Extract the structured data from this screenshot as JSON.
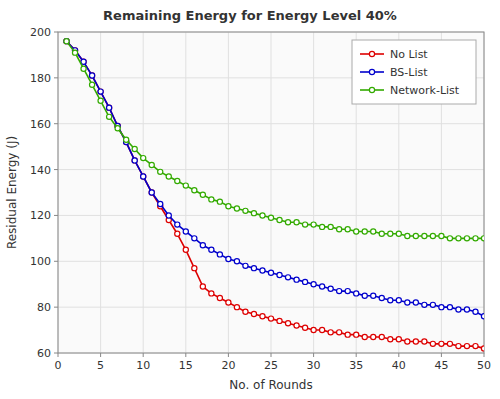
{
  "chart_data": {
    "type": "line",
    "title": "Remaining Energy for Energy Level 40%",
    "x_label": "No. of Rounds",
    "y_label": "Residual Energy (J)",
    "x": [
      1,
      2,
      3,
      4,
      5,
      6,
      7,
      8,
      9,
      10,
      11,
      12,
      13,
      14,
      15,
      16,
      17,
      18,
      19,
      20,
      21,
      22,
      23,
      24,
      25,
      26,
      27,
      28,
      29,
      30,
      31,
      32,
      33,
      34,
      35,
      36,
      37,
      38,
      39,
      40,
      41,
      42,
      43,
      44,
      45,
      46,
      47,
      48,
      49,
      50
    ],
    "series": [
      {
        "name": "No List",
        "color": "#dd0000",
        "values": [
          196,
          192,
          187,
          181,
          174,
          167,
          159,
          152,
          144,
          137,
          130,
          124,
          118,
          112,
          105,
          97,
          89,
          86,
          84,
          82,
          80,
          78,
          77,
          76,
          75,
          74,
          73,
          72,
          71,
          70,
          70,
          69,
          69,
          68,
          68,
          67,
          67,
          67,
          66,
          66,
          65,
          65,
          65,
          64,
          64,
          64,
          63,
          63,
          63,
          62
        ]
      },
      {
        "name": "BS-List",
        "color": "#0000cc",
        "values": [
          196,
          192,
          187,
          181,
          174,
          167,
          159,
          152,
          144,
          137,
          130,
          125,
          120,
          116,
          113,
          110,
          107,
          105,
          103,
          101,
          100,
          98,
          97,
          96,
          95,
          94,
          93,
          92,
          91,
          90,
          89,
          88,
          87,
          87,
          86,
          85,
          85,
          84,
          83,
          83,
          82,
          82,
          81,
          81,
          80,
          80,
          79,
          79,
          78,
          76
        ]
      },
      {
        "name": "Network-List",
        "color": "#33aa00",
        "values": [
          196,
          191,
          184,
          177,
          170,
          163,
          158,
          153,
          149,
          145,
          142,
          139,
          137,
          135,
          133,
          131,
          129,
          127,
          126,
          124,
          123,
          122,
          121,
          120,
          119,
          118,
          117,
          117,
          116,
          116,
          115,
          115,
          114,
          114,
          113,
          113,
          113,
          112,
          112,
          112,
          111,
          111,
          111,
          111,
          111,
          110,
          110,
          110,
          110,
          110
        ]
      }
    ],
    "marker": "circle",
    "xlim": [
      0,
      50
    ],
    "ylim": [
      60,
      200
    ],
    "xticks": [
      0,
      5,
      10,
      15,
      20,
      25,
      30,
      35,
      40,
      45,
      50
    ],
    "yticks": [
      60,
      80,
      100,
      120,
      140,
      160,
      180,
      200
    ],
    "grid": true,
    "legend": "upper right"
  }
}
